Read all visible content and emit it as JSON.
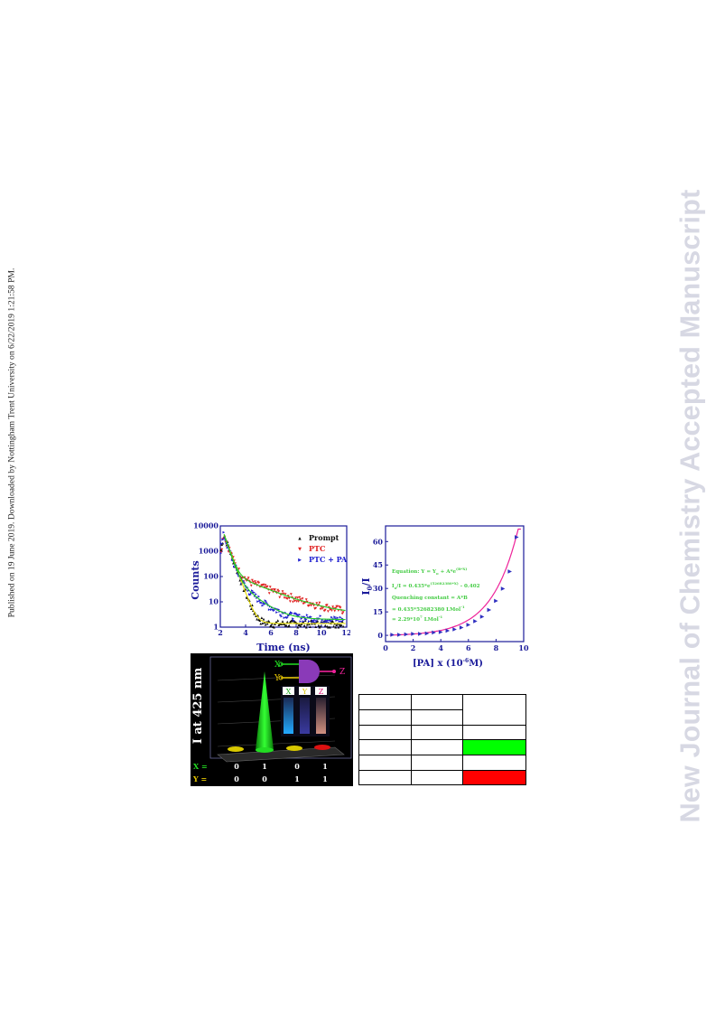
{
  "side_note": "Published on 19 June 2019. Downloaded by Nottingham Trent University on 6/22/2019 1:21:58 PM.",
  "watermark": "New Journal of Chemistry Accepted Manuscript",
  "colors": {
    "prompt": "#111111",
    "ptc": "#e02020",
    "ptc_pa": "#2020d0",
    "fit_green": "#22cc22",
    "fit_yellow": "#e8e000",
    "fit_magenta": "#ee2299",
    "axis_text": "#1b1b9a",
    "truth_green": "#00ff00",
    "truth_red": "#ff0000"
  },
  "decay_plot": {
    "ylabel": "Counts",
    "xlabel": "Time (ns)",
    "x_ticks": [
      "2",
      "4",
      "6",
      "8",
      "10",
      "12"
    ],
    "y_ticks": [
      "10000",
      "1000",
      "100",
      "10",
      "1"
    ],
    "legend": [
      "Prompt",
      "PTC",
      "PTC + PA"
    ]
  },
  "chart_data": [
    {
      "type": "scatter",
      "xlabel": "Time (ns)",
      "ylabel": "Counts",
      "xlim": [
        2,
        12
      ],
      "ylim": [
        1,
        10000
      ],
      "y_scale": "log",
      "legend_position": "top-right",
      "series": [
        {
          "name": "Prompt",
          "decay_ns": 0.32,
          "peak": 5000,
          "floor": 1.4
        },
        {
          "name": "PTC",
          "decay_ns": 2.1,
          "peak": 5000,
          "floor": 3.0
        },
        {
          "name": "PTC + PA",
          "decay_ns": 1.05,
          "peak": 5000,
          "floor": 2.0
        }
      ]
    },
    {
      "type": "scatter",
      "xlabel": "[PA] x (10",
      "xlabel_sup": "-6",
      "xlabel_tail": "M)",
      "ylabel": "I",
      "ylabel_sub": "0",
      "ylabel_tail": "/I",
      "xlim": [
        0,
        10
      ],
      "ylim": [
        -4,
        70
      ],
      "x": [
        0.5,
        1.0,
        1.5,
        2.0,
        2.5,
        3.0,
        3.5,
        4.0,
        4.5,
        5.0,
        5.5,
        6.0,
        6.5,
        7.0,
        7.5,
        8.0,
        8.5,
        9.0,
        9.5
      ],
      "y": [
        0.6,
        0.7,
        0.9,
        1.1,
        1.3,
        1.6,
        2.0,
        2.5,
        3.2,
        4.1,
        5.3,
        7.0,
        9.2,
        12.3,
        16.5,
        22.2,
        30.1,
        41.0,
        63.0
      ]
    }
  ],
  "sv_plot": {
    "x_ticks": [
      "0",
      "2",
      "4",
      "6",
      "8",
      "10"
    ],
    "y_ticks": [
      "60",
      "45",
      "30",
      "15",
      "0"
    ],
    "equation_lines": [
      "Equation: Y = Y",
      "I",
      "Quenching constant = A*B",
      "= 0.435*52682380 LMol",
      "= 2.29*10"
    ],
    "eq1": {
      "a": "Equation: Y = Y",
      "sub": "o",
      "b": " + A*e",
      "sup": "(B*X)"
    },
    "eq2": {
      "a": "I",
      "sub": "o",
      "b": "/I = 0.435*e",
      "sup": "(52682380*X)",
      "c": " - 0.402"
    },
    "eq3": "Quenching constant = A*B",
    "eq4": {
      "a": "= 0.435*52682380 LMol",
      "sup": "-1"
    },
    "eq5": {
      "a": "= 2.29*10",
      "sup": "7",
      "b": " LMol",
      "sup2": "-1"
    }
  },
  "logic_panel": {
    "ylabel": "I at 425 nm",
    "gate_inputs": [
      "X",
      "Y"
    ],
    "gate_output": "Z",
    "vial_labels": [
      "X",
      "Y",
      "Z"
    ],
    "x_row": {
      "label": "X =",
      "values": [
        "0",
        "1",
        "0",
        "1"
      ]
    },
    "y_row": {
      "label": "Y =",
      "values": [
        "0",
        "0",
        "1",
        "1"
      ]
    }
  },
  "truth_table": {
    "rows": [
      [
        "",
        "",
        ""
      ],
      [
        "",
        "",
        ""
      ],
      [
        "",
        "",
        ""
      ],
      [
        "",
        "",
        ""
      ],
      [
        "",
        "",
        ""
      ],
      [
        "",
        "",
        ""
      ]
    ]
  }
}
